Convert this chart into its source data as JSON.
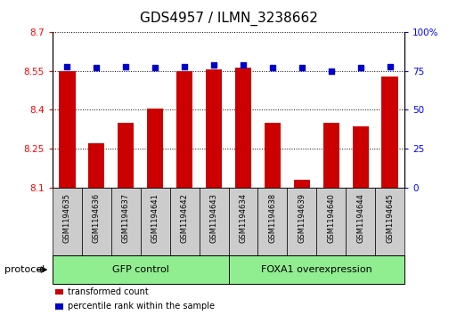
{
  "title": "GDS4957 / ILMN_3238662",
  "samples": [
    "GSM1194635",
    "GSM1194636",
    "GSM1194637",
    "GSM1194641",
    "GSM1194642",
    "GSM1194643",
    "GSM1194634",
    "GSM1194638",
    "GSM1194639",
    "GSM1194640",
    "GSM1194644",
    "GSM1194645"
  ],
  "bar_values": [
    8.548,
    8.27,
    8.35,
    8.405,
    8.548,
    8.558,
    8.565,
    8.35,
    8.128,
    8.35,
    8.335,
    8.528
  ],
  "dot_values": [
    78,
    77,
    78,
    77,
    78,
    79,
    79,
    77,
    77,
    75,
    77,
    78
  ],
  "ylim_left": [
    8.1,
    8.7
  ],
  "ylim_right": [
    0,
    100
  ],
  "yticks_left": [
    8.1,
    8.25,
    8.4,
    8.55,
    8.7
  ],
  "yticks_right": [
    0,
    25,
    50,
    75,
    100
  ],
  "ytick_labels_right": [
    "0",
    "25",
    "50",
    "75",
    "100%"
  ],
  "bar_color": "#cc0000",
  "dot_color": "#0000cc",
  "group1_label": "GFP control",
  "group2_label": "FOXA1 overexpression",
  "group1_count": 6,
  "group2_count": 6,
  "group_bg_color": "#90ee90",
  "sample_bg_color": "#cccccc",
  "legend_bar_label": "transformed count",
  "legend_dot_label": "percentile rank within the sample",
  "protocol_label": "protocol",
  "title_fontsize": 11,
  "axis_fontsize": 7.5,
  "sample_fontsize": 6,
  "group_fontsize": 8,
  "legend_fontsize": 7
}
